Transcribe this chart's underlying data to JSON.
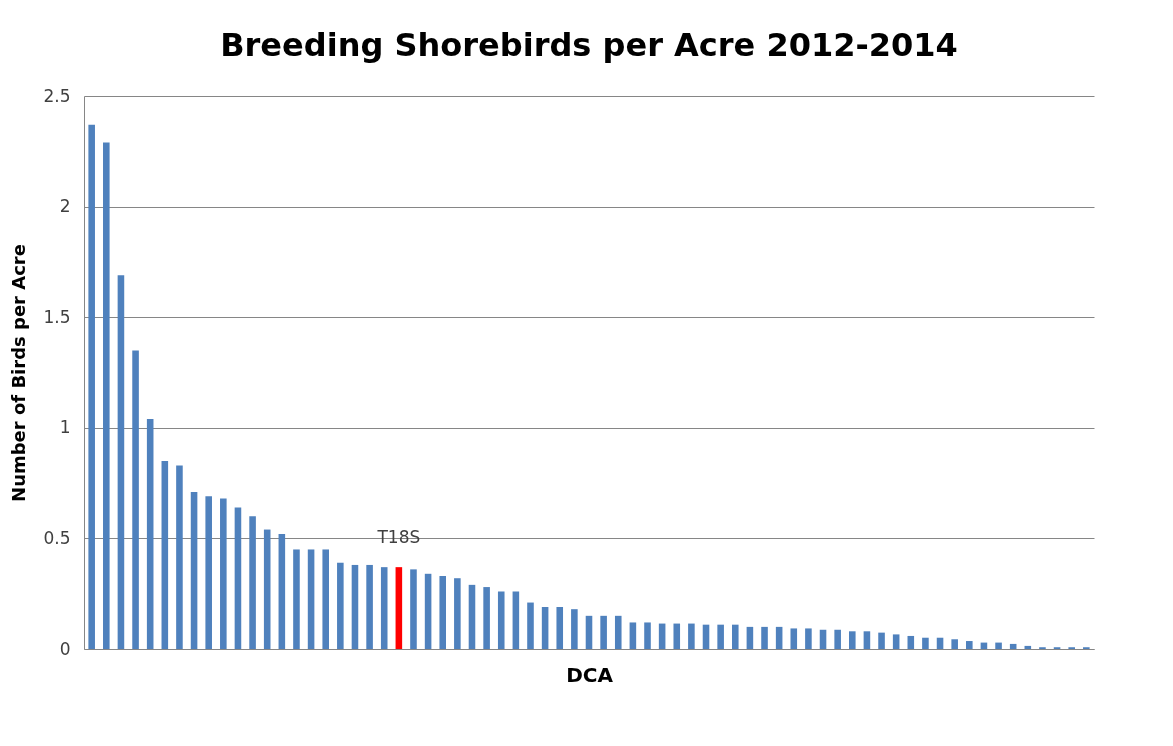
{
  "chart_data": {
    "type": "bar",
    "title": "Breeding Shorebirds per Acre 2012-2014",
    "xlabel": "DCA",
    "ylabel": "Number of Birds per Acre",
    "categories": [
      null,
      null,
      null,
      null,
      null,
      null,
      null,
      null,
      null,
      null,
      null,
      null,
      null,
      null,
      null,
      null,
      null,
      null,
      null,
      null,
      null,
      null,
      null,
      null,
      null,
      null,
      null,
      null,
      null,
      null,
      null,
      null,
      null,
      null,
      null,
      null,
      null,
      null,
      null,
      null,
      null,
      null,
      null,
      null,
      null,
      null,
      null,
      null,
      null,
      null,
      null,
      null,
      null,
      null,
      null,
      null,
      null,
      null,
      null,
      null,
      null,
      null,
      null,
      null,
      null,
      null,
      null,
      null,
      null
    ],
    "values": [
      2.37,
      2.29,
      1.69,
      1.35,
      1.04,
      0.85,
      0.83,
      0.71,
      0.69,
      0.68,
      0.64,
      0.6,
      0.54,
      0.52,
      0.45,
      0.45,
      0.45,
      0.39,
      0.38,
      0.38,
      0.37,
      0.37,
      0.36,
      0.34,
      0.33,
      0.32,
      0.29,
      0.28,
      0.26,
      0.26,
      0.21,
      0.19,
      0.19,
      0.18,
      0.15,
      0.15,
      0.15,
      0.12,
      0.12,
      0.115,
      0.115,
      0.115,
      0.11,
      0.11,
      0.11,
      0.1,
      0.1,
      0.1,
      0.093,
      0.093,
      0.087,
      0.087,
      0.08,
      0.08,
      0.074,
      0.066,
      0.059,
      0.051,
      0.051,
      0.044,
      0.036,
      0.029,
      0.029,
      0.023,
      0.014,
      0.008,
      0.008,
      0.008,
      0.008
    ],
    "colors": [
      "#4f81bd",
      "#4f81bd",
      "#4f81bd",
      "#4f81bd",
      "#4f81bd",
      "#4f81bd",
      "#4f81bd",
      "#4f81bd",
      "#4f81bd",
      "#4f81bd",
      "#4f81bd",
      "#4f81bd",
      "#4f81bd",
      "#4f81bd",
      "#4f81bd",
      "#4f81bd",
      "#4f81bd",
      "#4f81bd",
      "#4f81bd",
      "#4f81bd",
      "#4f81bd",
      "#ff0000",
      "#4f81bd",
      "#4f81bd",
      "#4f81bd",
      "#4f81bd",
      "#4f81bd",
      "#4f81bd",
      "#4f81bd",
      "#4f81bd",
      "#4f81bd",
      "#4f81bd",
      "#4f81bd",
      "#4f81bd",
      "#4f81bd",
      "#4f81bd",
      "#4f81bd",
      "#4f81bd",
      "#4f81bd",
      "#4f81bd",
      "#4f81bd",
      "#4f81bd",
      "#4f81bd",
      "#4f81bd",
      "#4f81bd",
      "#4f81bd",
      "#4f81bd",
      "#4f81bd",
      "#4f81bd",
      "#4f81bd",
      "#4f81bd",
      "#4f81bd",
      "#4f81bd",
      "#4f81bd",
      "#4f81bd",
      "#4f81bd",
      "#4f81bd",
      "#4f81bd",
      "#4f81bd",
      "#4f81bd",
      "#4f81bd",
      "#4f81bd",
      "#4f81bd",
      "#4f81bd",
      "#4f81bd",
      "#4f81bd",
      "#4f81bd",
      "#4f81bd",
      "#4f81bd"
    ],
    "ylim": [
      0,
      2.5
    ],
    "yticks": [
      0,
      0.5,
      1,
      1.5,
      2,
      2.5
    ],
    "grid": "y",
    "annotations": [
      "T18S"
    ]
  }
}
